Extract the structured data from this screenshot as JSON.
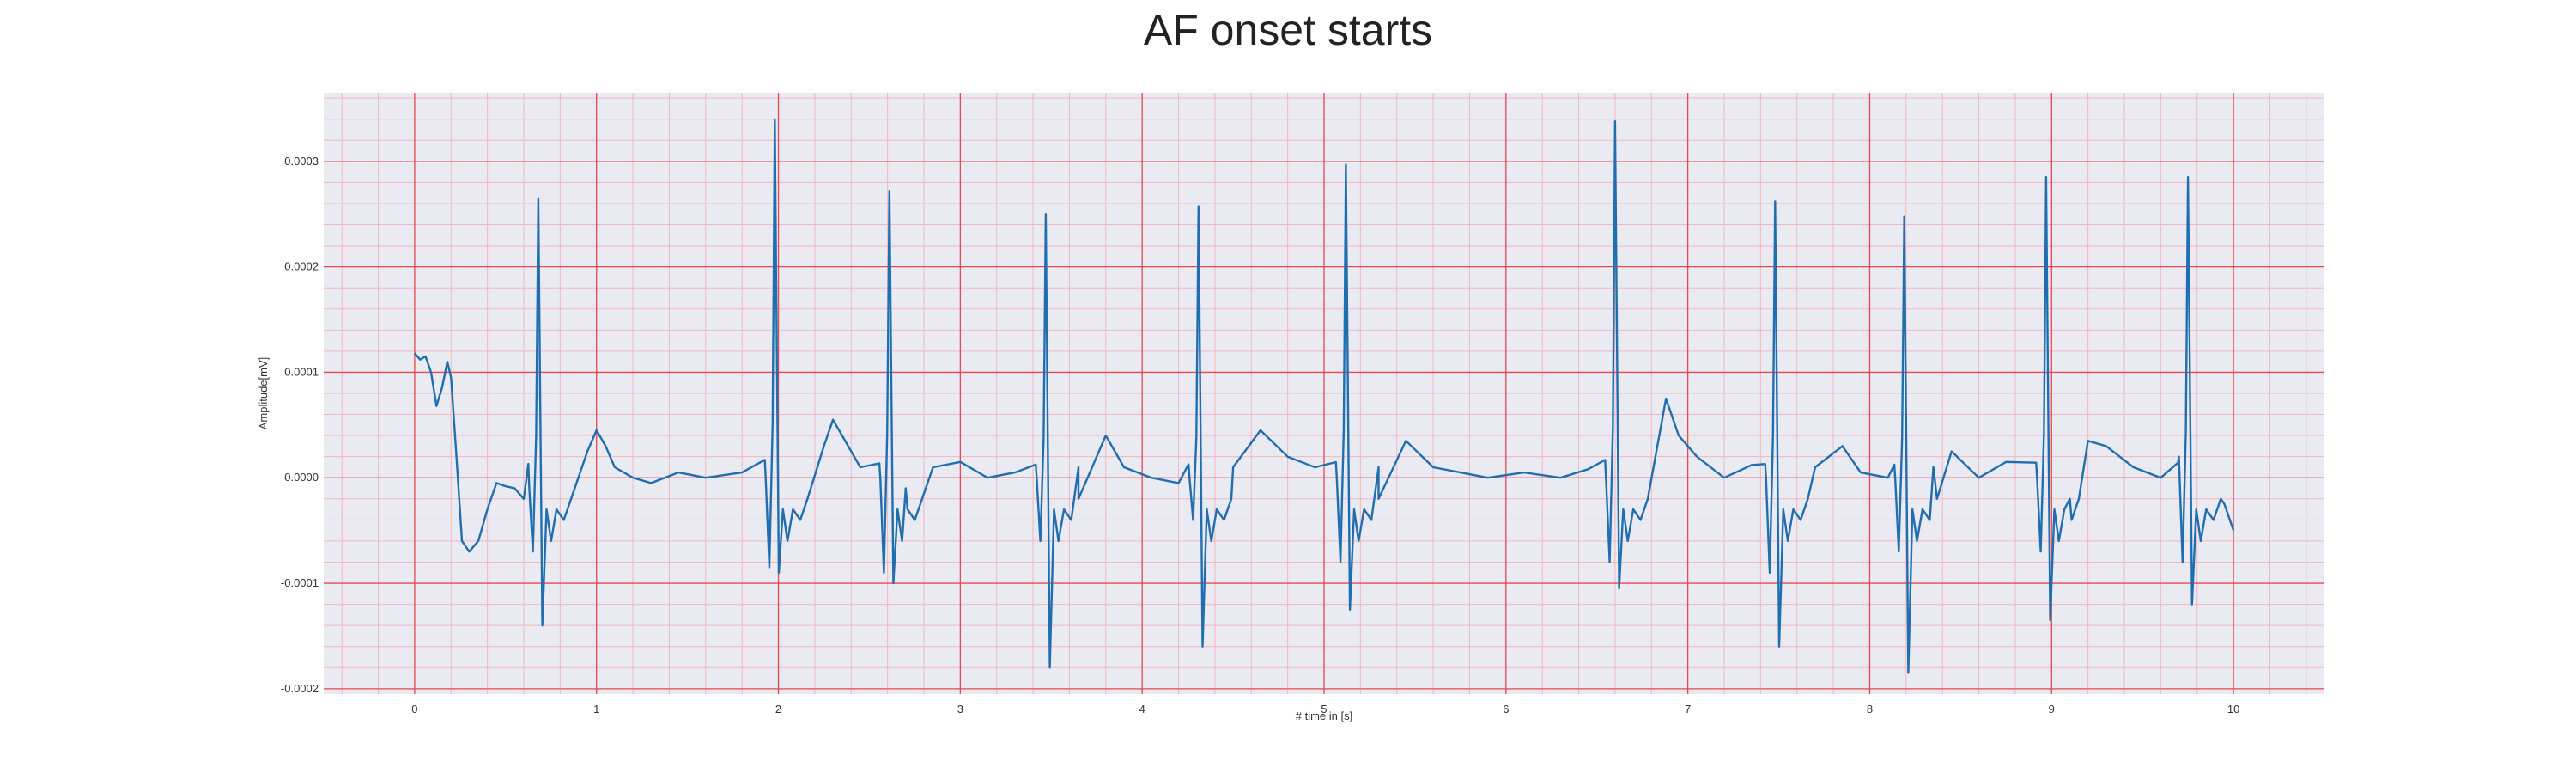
{
  "chart_data": {
    "type": "line",
    "title": "AF onset starts",
    "xlabel": "# time in [s]",
    "ylabel": "Amplitude[mV]",
    "xlim": [
      -0.5,
      10.5
    ],
    "ylim": [
      -0.000205,
      0.000365
    ],
    "xticks": [
      0,
      1,
      2,
      3,
      4,
      5,
      6,
      7,
      8,
      9,
      10
    ],
    "xtick_labels": [
      "0",
      "1",
      "2",
      "3",
      "4",
      "5",
      "6",
      "7",
      "8",
      "9",
      "10"
    ],
    "yticks": [
      -0.0002,
      -0.0001,
      0.0,
      0.0001,
      0.0002,
      0.0003
    ],
    "ytick_labels": [
      "-0.0002",
      "-0.0001",
      "0.0000",
      "0.0001",
      "0.0002",
      "0.0003"
    ],
    "grid": true,
    "minor_grid": true,
    "legend": "none",
    "colors": {
      "background": "#eaeaf2",
      "major_grid": "#e8474d",
      "minor_grid": "#f3b6bd",
      "line": "#1f6fb0"
    },
    "series": [
      {
        "color": "#1f6fb0",
        "r_peaks": [
          {
            "x": 0.68,
            "y": 0.000265,
            "q": -7e-05,
            "s": -0.00014
          },
          {
            "x": 1.98,
            "y": 0.00034,
            "q": -8.5e-05,
            "s": -9e-05
          },
          {
            "x": 2.61,
            "y": 0.000272,
            "q": -9e-05,
            "s": -0.0001
          },
          {
            "x": 3.47,
            "y": 0.00025,
            "q": -6e-05,
            "s": -0.00018
          },
          {
            "x": 4.31,
            "y": 0.000257,
            "q": -4e-05,
            "s": -0.00016
          },
          {
            "x": 5.12,
            "y": 0.000297,
            "q": -8e-05,
            "s": -0.000125
          },
          {
            "x": 6.6,
            "y": 0.000338,
            "q": -8e-05,
            "s": -0.000105
          },
          {
            "x": 7.48,
            "y": 0.000262,
            "q": -9e-05,
            "s": -0.00016
          },
          {
            "x": 8.19,
            "y": 0.000248,
            "q": -7e-05,
            "s": -0.000185
          },
          {
            "x": 8.97,
            "y": 0.000285,
            "q": -7e-05,
            "s": -0.000135
          },
          {
            "x": 9.75,
            "y": 0.000285,
            "q": -8e-05,
            "s": -0.00012
          }
        ],
        "points": [
          [
            0.0,
            0.000118
          ],
          [
            0.03,
            0.000112
          ],
          [
            0.06,
            0.000115
          ],
          [
            0.09,
            0.0001
          ],
          [
            0.12,
            6.8e-05
          ],
          [
            0.15,
            8.5e-05
          ],
          [
            0.18,
            0.00011
          ],
          [
            0.2,
            9.5e-05
          ],
          [
            0.23,
            2e-05
          ],
          [
            0.26,
            -6e-05
          ],
          [
            0.3,
            -7e-05
          ],
          [
            0.35,
            -6e-05
          ],
          [
            0.4,
            -3e-05
          ],
          [
            0.45,
            -5e-06
          ],
          [
            0.5,
            -8e-06
          ],
          [
            0.55,
            -1e-05
          ],
          [
            0.6,
            -2e-05
          ],
          [
            0.63,
            -1e-05
          ],
          [
            0.95,
            2.5e-05
          ],
          [
            1.0,
            4.5e-05
          ],
          [
            1.05,
            3e-05
          ],
          [
            1.1,
            1e-05
          ],
          [
            1.2,
            0.0
          ],
          [
            1.3,
            -5e-06
          ],
          [
            1.45,
            5e-06
          ],
          [
            1.6,
            0.0
          ],
          [
            1.8,
            5e-06
          ],
          [
            1.93,
            0.0
          ],
          [
            2.25,
            3e-05
          ],
          [
            2.3,
            5.5e-05
          ],
          [
            2.35,
            4e-05
          ],
          [
            2.45,
            1e-05
          ],
          [
            2.56,
            0.0
          ],
          [
            2.7,
            -1e-05
          ],
          [
            2.85,
            1e-05
          ],
          [
            3.0,
            1.5e-05
          ],
          [
            3.15,
            0.0
          ],
          [
            3.3,
            5e-06
          ],
          [
            3.42,
            0.0
          ],
          [
            3.65,
            1e-05
          ],
          [
            3.8,
            4e-05
          ],
          [
            3.9,
            1e-05
          ],
          [
            4.05,
            0.0
          ],
          [
            4.2,
            -5e-06
          ],
          [
            4.26,
            0.0
          ],
          [
            4.5,
            1e-05
          ],
          [
            4.65,
            4.5e-05
          ],
          [
            4.8,
            2e-05
          ],
          [
            4.95,
            1e-05
          ],
          [
            5.07,
            0.0
          ],
          [
            5.3,
            1e-05
          ],
          [
            5.45,
            3.5e-05
          ],
          [
            5.6,
            1e-05
          ],
          [
            5.75,
            5e-06
          ],
          [
            5.9,
            0.0
          ],
          [
            6.1,
            5e-06
          ],
          [
            6.3,
            0.0
          ],
          [
            6.45,
            8e-06
          ],
          [
            6.55,
            0.0
          ],
          [
            6.88,
            7.5e-05
          ],
          [
            6.95,
            4e-05
          ],
          [
            7.05,
            2e-05
          ],
          [
            7.2,
            0.0
          ],
          [
            7.35,
            1.2e-05
          ],
          [
            7.43,
            0.0
          ],
          [
            7.7,
            1e-05
          ],
          [
            7.85,
            3e-05
          ],
          [
            7.95,
            5e-06
          ],
          [
            8.1,
            0.0
          ],
          [
            8.14,
            0.0
          ],
          [
            8.35,
            1e-05
          ],
          [
            8.45,
            2.5e-05
          ],
          [
            8.6,
            0.0
          ],
          [
            8.75,
            1.5e-05
          ],
          [
            8.92,
            0.0
          ],
          [
            9.1,
            -2e-05
          ],
          [
            9.2,
            3.5e-05
          ],
          [
            9.3,
            3e-05
          ],
          [
            9.45,
            1e-05
          ],
          [
            9.6,
            0.0
          ],
          [
            9.7,
            2e-05
          ],
          [
            9.95,
            -2.5e-05
          ],
          [
            10.0,
            -5e-05
          ]
        ]
      }
    ]
  }
}
